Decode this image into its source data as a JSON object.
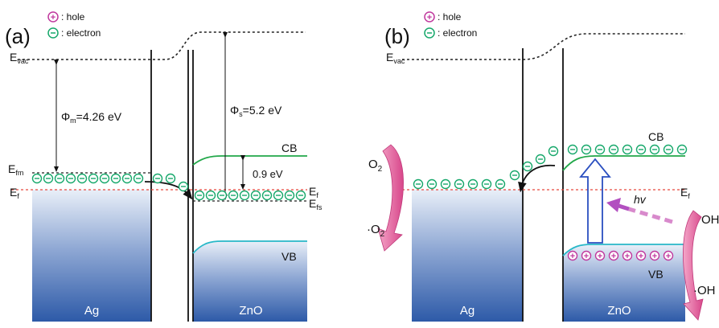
{
  "panel_a": {
    "label": "(a)",
    "legend": {
      "hole": ": hole",
      "electron": ": electron"
    },
    "evac_main": "E",
    "evac_sub": "vac",
    "efm_main": "E",
    "efm_sub": "fm",
    "ef_left_main": "E",
    "ef_left_sub": "f",
    "phi_m_sym": "Φ",
    "phi_m_sub": "m",
    "phi_m_val": "=4.26 eV",
    "phi_s_sym": "Φ",
    "phi_s_sub": "s",
    "phi_s_val": "=5.2 eV",
    "cb": "CB",
    "vb": "VB",
    "gap": "0.9 eV",
    "ef_right_main": "E",
    "ef_right_sub": "f",
    "efs_main": "E",
    "efs_sub": "fs",
    "ag": "Ag",
    "zno": "ZnO"
  },
  "panel_b": {
    "label": "(b)",
    "legend": {
      "hole": ": hole",
      "electron": ": electron"
    },
    "evac_main": "E",
    "evac_sub": "vac",
    "cb": "CB",
    "vb": "VB",
    "ef_main": "E",
    "ef_sub": "f",
    "hv": "hv",
    "o2": "O",
    "o2_sub": "2",
    "o2_rad": "·O",
    "o2_rad_sub": "2",
    "oh": "OH",
    "oh_rad": "·OH",
    "ag": "Ag",
    "zno": "ZnO"
  },
  "colors": {
    "electron": "#17a86b",
    "hole": "#c0399e",
    "fermi": "#e8473f",
    "cb_line": "#22a84a",
    "vb_line": "#28b8c8",
    "block_top": "#ffffff",
    "block_bottom": "#2d5aa8",
    "arrow_pink": "#e0609a",
    "hv_arrow": "#b24fc0",
    "up_arrow": "#2a4fc0"
  }
}
